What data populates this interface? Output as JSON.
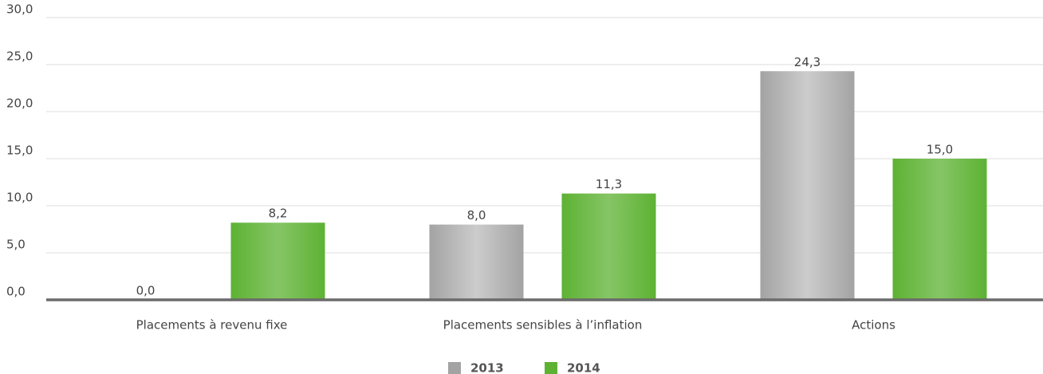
{
  "chart_data": {
    "type": "bar",
    "categories": [
      "Placements à revenu fixe",
      "Placements sensibles à l’inflation",
      "Actions"
    ],
    "series": [
      {
        "name": "2013",
        "color": "#a3a3a3",
        "values": [
          0.0,
          8.0,
          24.3
        ],
        "value_labels": [
          "0,0",
          "8,0",
          "24,3"
        ]
      },
      {
        "name": "2014",
        "color": "#5db233",
        "values": [
          8.2,
          11.3,
          15.0
        ],
        "value_labels": [
          "8,2",
          "11,3",
          "15,0"
        ]
      }
    ],
    "ylim": [
      0,
      30
    ],
    "yticks": [
      {
        "value": 0,
        "label": "0,0"
      },
      {
        "value": 5,
        "label": "5,0"
      },
      {
        "value": 10,
        "label": "10,0"
      },
      {
        "value": 15,
        "label": "15,0"
      },
      {
        "value": 20,
        "label": "20,0"
      },
      {
        "value": 25,
        "label": "25,0"
      },
      {
        "value": 30,
        "label": "30,0"
      }
    ],
    "grid": true,
    "legend": "bottom"
  }
}
